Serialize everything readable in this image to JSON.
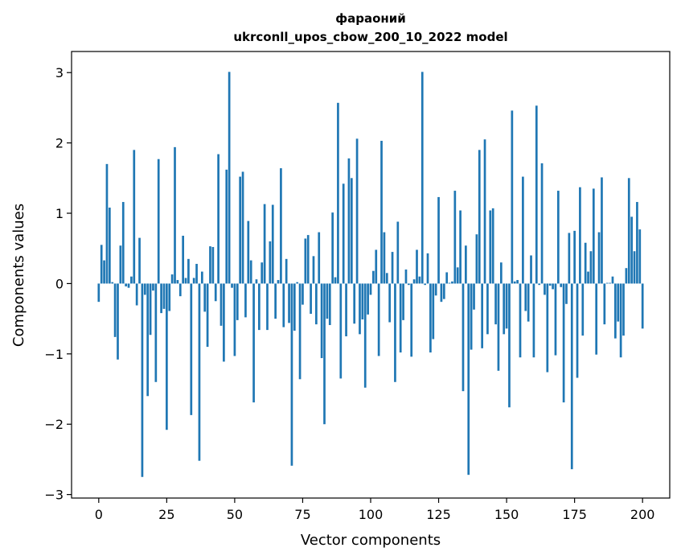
{
  "chart_data": {
    "type": "bar",
    "title_line1": "фараоний",
    "title_line2": "ukrconll_upos_cbow_200_10_2022 model",
    "xlabel": "Vector components",
    "ylabel": "Components values",
    "xlim": [
      -10,
      210
    ],
    "ylim": [
      -3.05,
      3.3
    ],
    "xticks": [
      0,
      25,
      50,
      75,
      100,
      125,
      150,
      175,
      200
    ],
    "xtick_labels": [
      "0",
      "25",
      "50",
      "75",
      "100",
      "125",
      "150",
      "175",
      "200"
    ],
    "yticks": [
      -3,
      -2,
      -1,
      0,
      1,
      2,
      3
    ],
    "ytick_labels": [
      "−3",
      "−2",
      "−1",
      "0",
      "1",
      "2",
      "3"
    ],
    "grid": false,
    "bar_color": "#1f77b4",
    "values": [
      -0.26,
      0.55,
      0.33,
      1.7,
      1.08,
      0.02,
      -0.76,
      -1.08,
      0.54,
      1.16,
      -0.04,
      -0.06,
      0.1,
      1.9,
      -0.31,
      0.65,
      -2.75,
      -0.16,
      -1.6,
      -0.73,
      -0.1,
      -1.4,
      1.77,
      -0.42,
      -0.36,
      -2.08,
      -0.39,
      0.13,
      1.94,
      0.05,
      -0.18,
      0.68,
      0.08,
      0.35,
      -1.87,
      0.08,
      0.28,
      -2.52,
      0.17,
      -0.4,
      -0.9,
      0.53,
      0.52,
      -0.25,
      1.84,
      -0.6,
      -1.11,
      1.62,
      3.01,
      -0.06,
      -1.03,
      -0.52,
      1.52,
      1.59,
      -0.48,
      0.89,
      0.33,
      -1.69,
      0.06,
      -0.66,
      0.3,
      1.13,
      -0.66,
      0.6,
      1.12,
      -0.5,
      0.05,
      1.64,
      -0.62,
      0.35,
      -0.56,
      -2.59,
      -0.67,
      0.02,
      -1.36,
      -0.3,
      0.64,
      0.69,
      -0.43,
      0.39,
      -0.58,
      0.73,
      -1.06,
      -2.0,
      -0.5,
      -0.59,
      1.01,
      0.09,
      2.57,
      -1.35,
      1.42,
      -0.75,
      1.78,
      1.5,
      -0.57,
      2.06,
      -0.72,
      -0.51,
      -1.48,
      -0.44,
      -0.16,
      0.18,
      0.48,
      -1.03,
      2.03,
      0.73,
      0.15,
      -0.55,
      0.45,
      -1.4,
      0.88,
      -0.98,
      -0.52,
      0.2,
      -0.02,
      -1.04,
      0.06,
      0.48,
      0.1,
      3.01,
      -0.02,
      0.43,
      -0.98,
      -0.79,
      -0.17,
      1.23,
      -0.26,
      -0.22,
      0.16,
      0.01,
      0.03,
      1.32,
      0.23,
      1.04,
      -1.53,
      0.54,
      -2.72,
      -0.94,
      -0.37,
      0.7,
      1.9,
      -0.92,
      2.05,
      -0.72,
      1.04,
      1.07,
      -0.58,
      -1.24,
      0.3,
      -0.72,
      -0.64,
      -1.76,
      2.46,
      0.03,
      0.05,
      -1.05,
      1.52,
      -0.39,
      -0.54,
      0.4,
      -1.05,
      2.53,
      -0.02,
      1.71,
      -0.16,
      -1.26,
      -0.03,
      -0.08,
      -1.02,
      1.32,
      -0.05,
      -1.69,
      -0.29,
      0.72,
      -2.64,
      0.75,
      -1.34,
      1.37,
      -0.74,
      0.58,
      0.17,
      0.46,
      1.35,
      -1.01,
      0.73,
      1.51,
      -0.58,
      0.01,
      0.01,
      0.1,
      -0.78,
      -0.54,
      -1.05,
      -0.74,
      0.22,
      1.5,
      0.95,
      0.46,
      1.16,
      0.77,
      -0.64
    ]
  }
}
